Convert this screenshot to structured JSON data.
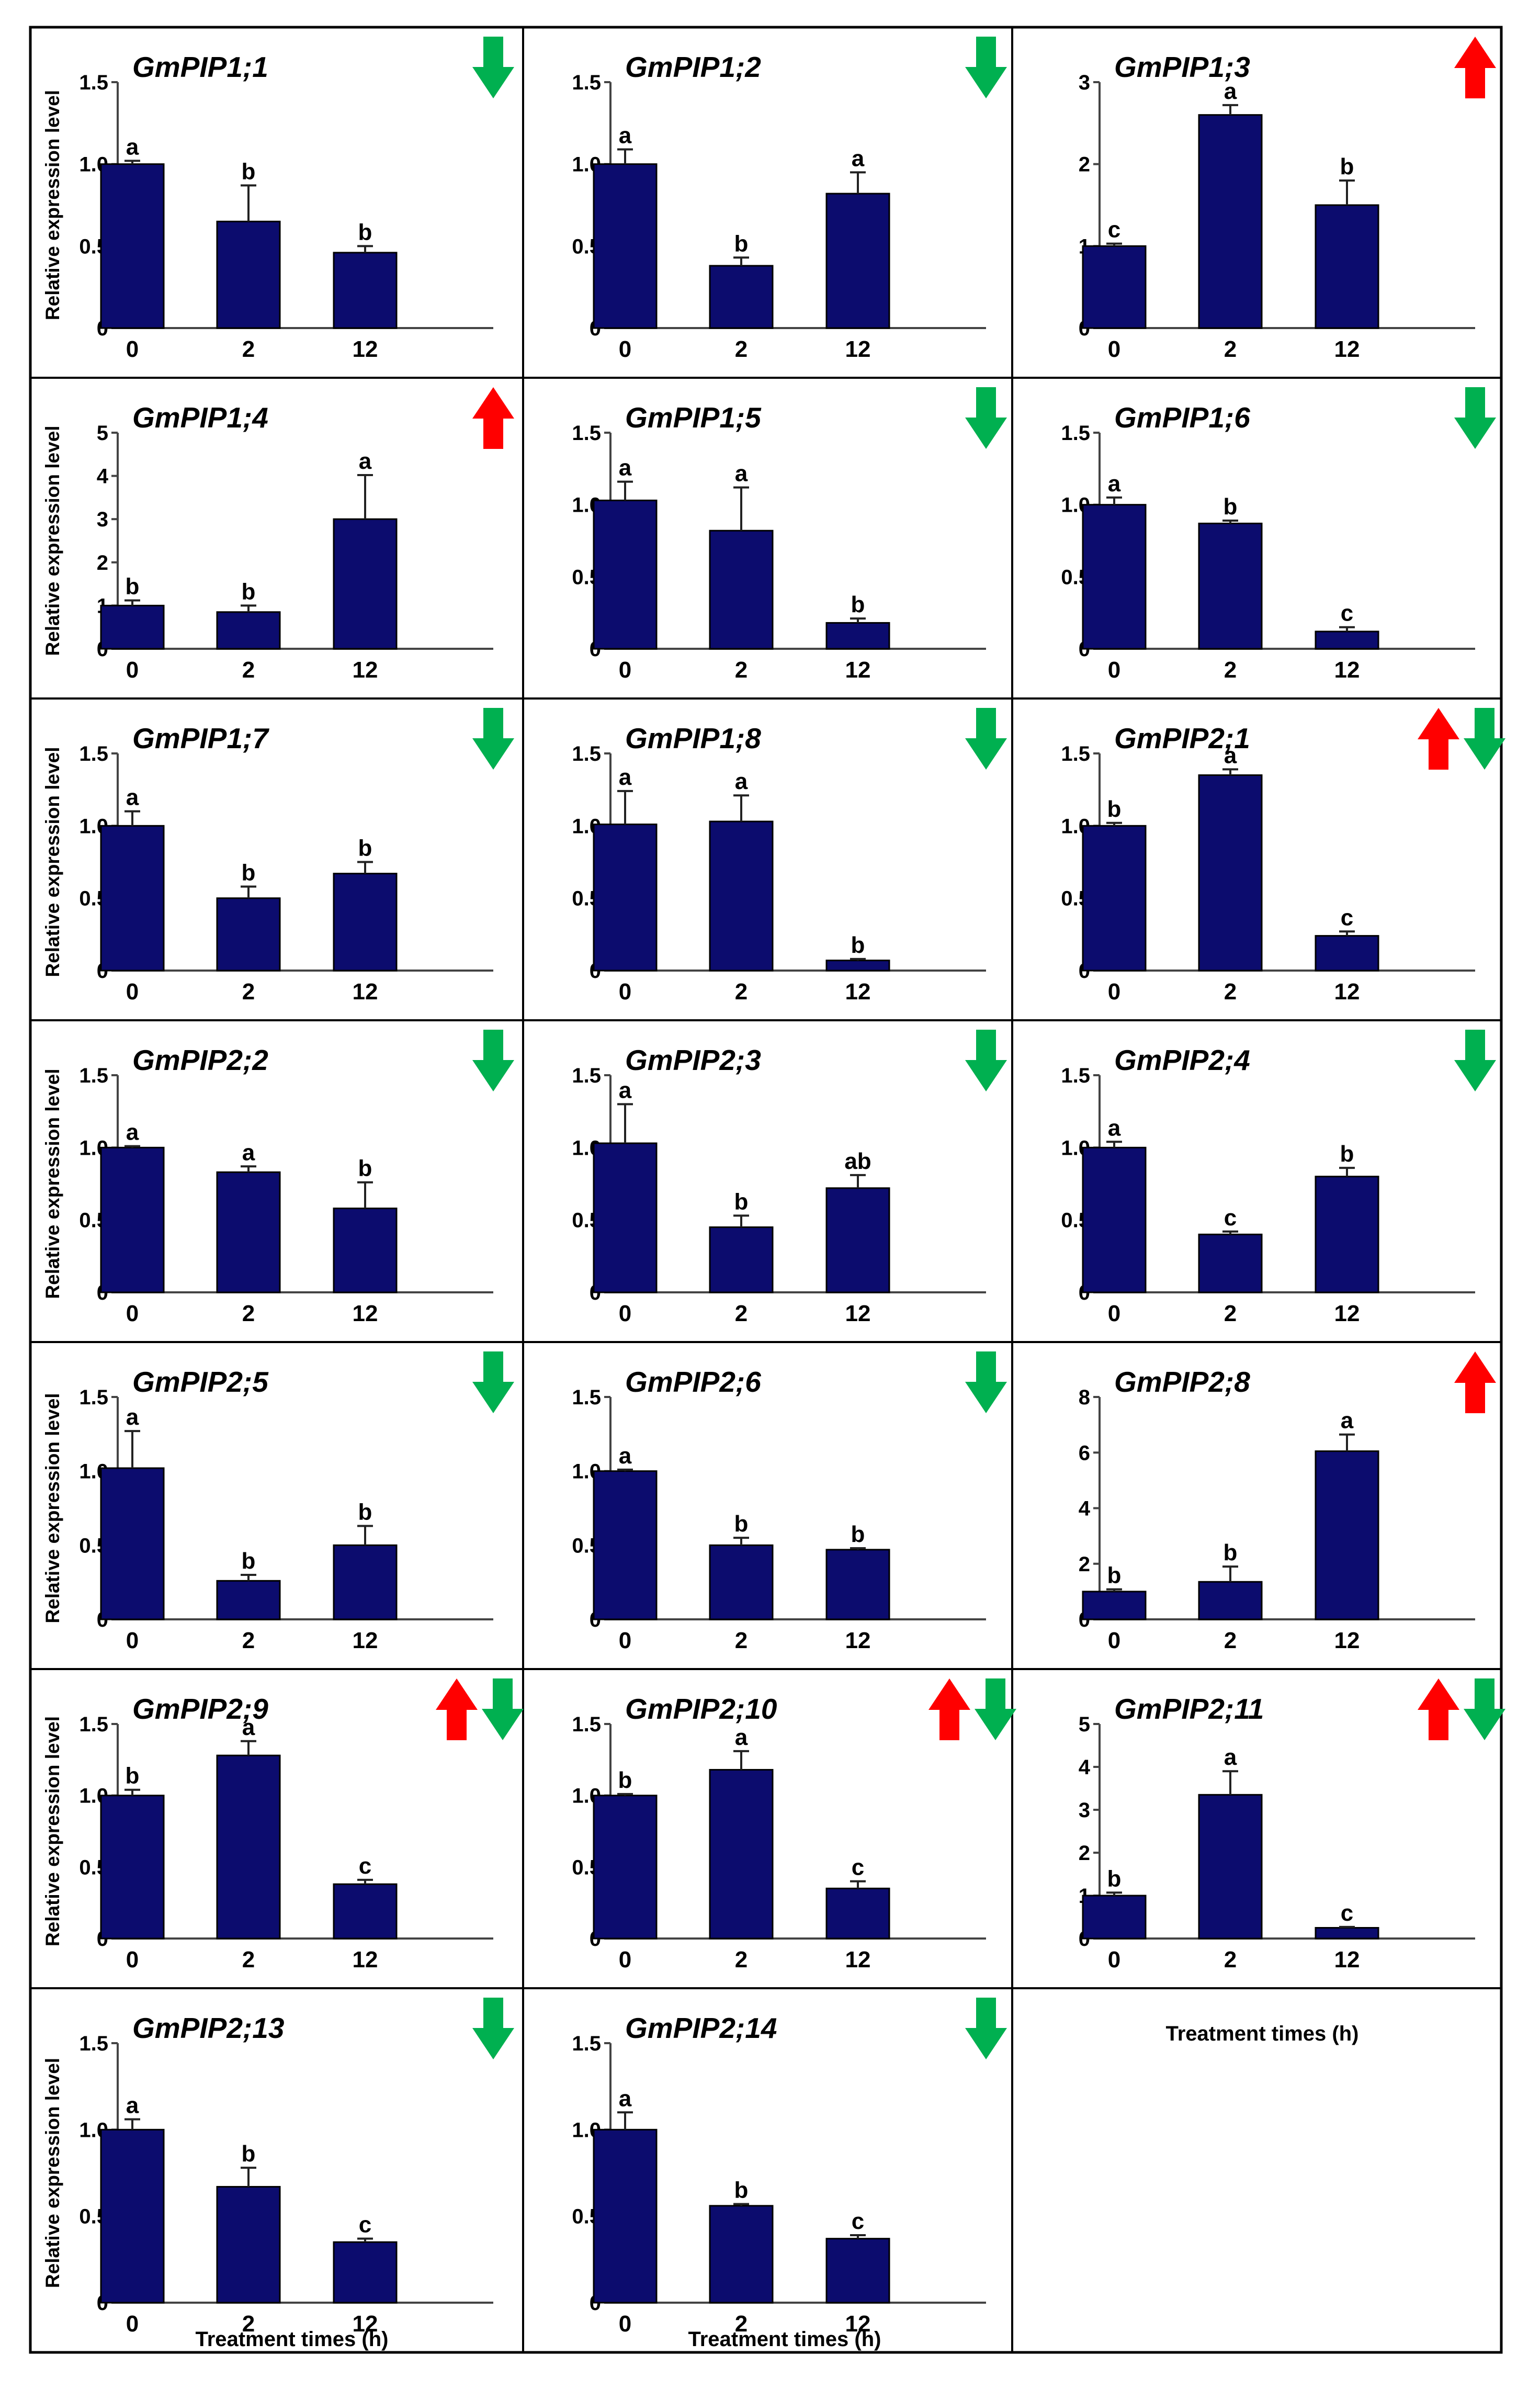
{
  "colors": {
    "bar": "#0c0c6e",
    "arrow_up": "#ff0000",
    "arrow_down": "#00b050",
    "border": "#000000"
  },
  "common": {
    "ylabel": "Relative expression level",
    "xlabel": "Treatment times (h)"
  },
  "chart_data": [
    {
      "type": "bar",
      "title": "GmPIP1;1",
      "categories": [
        "0",
        "2",
        "12"
      ],
      "values": [
        1.0,
        0.65,
        0.46
      ],
      "errors": [
        0.02,
        0.22,
        0.04
      ],
      "significance": [
        "a",
        "b",
        "b"
      ],
      "ylim": [
        0,
        1.5
      ],
      "yticks": [
        "0",
        "0.5",
        "1.0",
        "1.5"
      ],
      "trend": [
        "down"
      ]
    },
    {
      "type": "bar",
      "title": "GmPIP1;2",
      "categories": [
        "0",
        "2",
        "12"
      ],
      "values": [
        1.0,
        0.38,
        0.82
      ],
      "errors": [
        0.09,
        0.05,
        0.13
      ],
      "significance": [
        "a",
        "b",
        "a"
      ],
      "ylim": [
        0,
        1.5
      ],
      "yticks": [
        "0",
        "0.5",
        "1.0",
        "1.5"
      ],
      "trend": [
        "down"
      ]
    },
    {
      "type": "bar",
      "title": "GmPIP1;3",
      "categories": [
        "0",
        "2",
        "12"
      ],
      "values": [
        1.0,
        2.6,
        1.5
      ],
      "errors": [
        0.03,
        0.12,
        0.3
      ],
      "significance": [
        "c",
        "a",
        "b"
      ],
      "ylim": [
        0,
        3
      ],
      "yticks": [
        "0",
        "1",
        "2",
        "3"
      ],
      "trend": [
        "up"
      ]
    },
    {
      "type": "bar",
      "title": "GmPIP1;4",
      "categories": [
        "0",
        "2",
        "12"
      ],
      "values": [
        1.0,
        0.85,
        3.0
      ],
      "errors": [
        0.12,
        0.15,
        1.02
      ],
      "significance": [
        "b",
        "b",
        "a"
      ],
      "ylim": [
        0,
        5
      ],
      "yticks": [
        "0",
        "1",
        "2",
        "3",
        "4",
        "5"
      ],
      "trend": [
        "up"
      ]
    },
    {
      "type": "bar",
      "title": "GmPIP1;5",
      "categories": [
        "0",
        "2",
        "12"
      ],
      "values": [
        1.03,
        0.82,
        0.18
      ],
      "errors": [
        0.13,
        0.3,
        0.03
      ],
      "significance": [
        "a",
        "a",
        "b"
      ],
      "ylim": [
        0,
        1.5
      ],
      "yticks": [
        "0",
        "0.5",
        "1.0",
        "1.5"
      ],
      "trend": [
        "down"
      ]
    },
    {
      "type": "bar",
      "title": "GmPIP1;6",
      "categories": [
        "0",
        "2",
        "12"
      ],
      "values": [
        1.0,
        0.87,
        0.12
      ],
      "errors": [
        0.05,
        0.02,
        0.03
      ],
      "significance": [
        "a",
        "b",
        "c"
      ],
      "ylim": [
        0,
        1.5
      ],
      "yticks": [
        "0",
        "0.5",
        "1.0",
        "1.5"
      ],
      "trend": [
        "down"
      ]
    },
    {
      "type": "bar",
      "title": "GmPIP1;7",
      "categories": [
        "0",
        "2",
        "12"
      ],
      "values": [
        1.0,
        0.5,
        0.67
      ],
      "errors": [
        0.1,
        0.08,
        0.08
      ],
      "significance": [
        "a",
        "b",
        "b"
      ],
      "ylim": [
        0,
        1.5
      ],
      "yticks": [
        "0",
        "0.5",
        "1.0",
        "1.5"
      ],
      "trend": [
        "down"
      ]
    },
    {
      "type": "bar",
      "title": "GmPIP1;8",
      "categories": [
        "0",
        "2",
        "12"
      ],
      "values": [
        1.01,
        1.03,
        0.07
      ],
      "errors": [
        0.23,
        0.18,
        0.01
      ],
      "significance": [
        "a",
        "a",
        "b"
      ],
      "ylim": [
        0,
        1.5
      ],
      "yticks": [
        "0",
        "0.5",
        "1.0",
        "1.5"
      ],
      "trend": [
        "down"
      ]
    },
    {
      "type": "bar",
      "title": "GmPIP2;1",
      "categories": [
        "0",
        "2",
        "12"
      ],
      "values": [
        1.0,
        1.35,
        0.24
      ],
      "errors": [
        0.02,
        0.04,
        0.03
      ],
      "significance": [
        "b",
        "a",
        "c"
      ],
      "ylim": [
        0,
        1.5
      ],
      "yticks": [
        "0",
        "0.5",
        "1.0",
        "1.5"
      ],
      "trend": [
        "up",
        "down"
      ]
    },
    {
      "type": "bar",
      "title": "GmPIP2;2",
      "categories": [
        "0",
        "2",
        "12"
      ],
      "values": [
        1.0,
        0.83,
        0.58
      ],
      "errors": [
        0.01,
        0.04,
        0.18
      ],
      "significance": [
        "a",
        "a",
        "b"
      ],
      "ylim": [
        0,
        1.5
      ],
      "yticks": [
        "0",
        "0.5",
        "1.0",
        "1.5"
      ],
      "trend": [
        "down"
      ]
    },
    {
      "type": "bar",
      "title": "GmPIP2;3",
      "categories": [
        "0",
        "2",
        "12"
      ],
      "values": [
        1.03,
        0.45,
        0.72
      ],
      "errors": [
        0.27,
        0.08,
        0.09
      ],
      "significance": [
        "a",
        "b",
        "ab"
      ],
      "ylim": [
        0,
        1.5
      ],
      "yticks": [
        "0",
        "0.5",
        "1.0",
        "1.5"
      ],
      "trend": [
        "down"
      ]
    },
    {
      "type": "bar",
      "title": "GmPIP2;4",
      "categories": [
        "0",
        "2",
        "12"
      ],
      "values": [
        1.0,
        0.4,
        0.8
      ],
      "errors": [
        0.04,
        0.02,
        0.06
      ],
      "significance": [
        "a",
        "c",
        "b"
      ],
      "ylim": [
        0,
        1.5
      ],
      "yticks": [
        "0",
        "0.5",
        "1.0",
        "1.5"
      ],
      "trend": [
        "down"
      ]
    },
    {
      "type": "bar",
      "title": "GmPIP2;5",
      "categories": [
        "0",
        "2",
        "12"
      ],
      "values": [
        1.02,
        0.26,
        0.5
      ],
      "errors": [
        0.25,
        0.04,
        0.13
      ],
      "significance": [
        "a",
        "b",
        "b"
      ],
      "ylim": [
        0,
        1.5
      ],
      "yticks": [
        "0",
        "0.5",
        "1.0",
        "1.5"
      ],
      "trend": [
        "down"
      ]
    },
    {
      "type": "bar",
      "title": "GmPIP2;6",
      "categories": [
        "0",
        "2",
        "12"
      ],
      "values": [
        1.0,
        0.5,
        0.47
      ],
      "errors": [
        0.01,
        0.05,
        0.01
      ],
      "significance": [
        "a",
        "b",
        "b"
      ],
      "ylim": [
        0,
        1.5
      ],
      "yticks": [
        "0",
        "0.5",
        "1.0",
        "1.5"
      ],
      "trend": [
        "down"
      ]
    },
    {
      "type": "bar",
      "title": "GmPIP2;8",
      "categories": [
        "0",
        "2",
        "12"
      ],
      "values": [
        1.0,
        1.35,
        6.05
      ],
      "errors": [
        0.08,
        0.55,
        0.6
      ],
      "significance": [
        "b",
        "b",
        "a"
      ],
      "ylim": [
        0,
        8
      ],
      "yticks": [
        "0",
        "2",
        "4",
        "6",
        "8"
      ],
      "trend": [
        "up"
      ]
    },
    {
      "type": "bar",
      "title": "GmPIP2;9",
      "categories": [
        "0",
        "2",
        "12"
      ],
      "values": [
        1.0,
        1.28,
        0.38
      ],
      "errors": [
        0.04,
        0.1,
        0.03
      ],
      "significance": [
        "b",
        "a",
        "c"
      ],
      "ylim": [
        0,
        1.5
      ],
      "yticks": [
        "0",
        "0.5",
        "1.0",
        "1.5"
      ],
      "trend": [
        "up",
        "down"
      ]
    },
    {
      "type": "bar",
      "title": "GmPIP2;10",
      "categories": [
        "0",
        "2",
        "12"
      ],
      "values": [
        1.0,
        1.18,
        0.35
      ],
      "errors": [
        0.01,
        0.13,
        0.05
      ],
      "significance": [
        "b",
        "a",
        "c"
      ],
      "ylim": [
        0,
        1.5
      ],
      "yticks": [
        "0",
        "0.5",
        "1.0",
        "1.5"
      ],
      "trend": [
        "up",
        "down"
      ]
    },
    {
      "type": "bar",
      "title": "GmPIP2;11",
      "categories": [
        "0",
        "2",
        "12"
      ],
      "values": [
        1.0,
        3.35,
        0.25
      ],
      "errors": [
        0.07,
        0.55,
        0.02
      ],
      "significance": [
        "b",
        "a",
        "c"
      ],
      "ylim": [
        0,
        5
      ],
      "yticks": [
        "0",
        "1",
        "2",
        "3",
        "4",
        "5"
      ],
      "trend": [
        "up",
        "down"
      ]
    },
    {
      "type": "bar",
      "title": "GmPIP2;13",
      "categories": [
        "0",
        "2",
        "12"
      ],
      "values": [
        1.0,
        0.67,
        0.35
      ],
      "errors": [
        0.06,
        0.11,
        0.02
      ],
      "significance": [
        "a",
        "b",
        "c"
      ],
      "ylim": [
        0,
        1.5
      ],
      "yticks": [
        "0",
        "0.5",
        "1.0",
        "1.5"
      ],
      "trend": [
        "down"
      ]
    },
    {
      "type": "bar",
      "title": "GmPIP2;14",
      "categories": [
        "0",
        "2",
        "12"
      ],
      "values": [
        1.0,
        0.56,
        0.37
      ],
      "errors": [
        0.1,
        0.01,
        0.02
      ],
      "significance": [
        "a",
        "b",
        "c"
      ],
      "ylim": [
        0,
        1.5
      ],
      "yticks": [
        "0",
        "0.5",
        "1.0",
        "1.5"
      ],
      "trend": [
        "down"
      ]
    }
  ]
}
